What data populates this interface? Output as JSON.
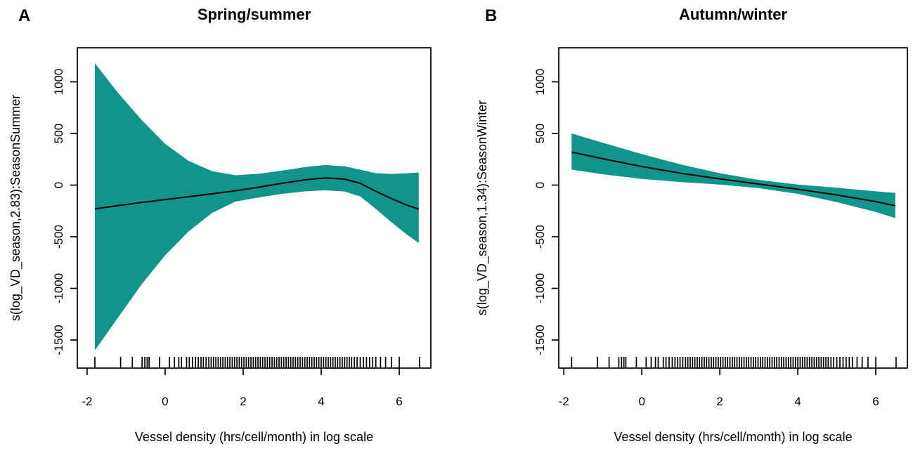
{
  "page": {
    "background": "#ffffff"
  },
  "colors": {
    "band": "#10948c",
    "fit_line": "#000000",
    "frame": "#000000",
    "text": "#000000"
  },
  "chart_data": [
    {
      "id": "a",
      "type": "area",
      "letter": "A",
      "title": "Spring/summer",
      "ylabel": "s(log_VD_season,2.83):SeasonSummer",
      "xlabel": "Vessel density (hrs/cell/month) in log scale",
      "xlim": [
        -2.25,
        6.81
      ],
      "ylim": [
        -1772,
        1330
      ],
      "xticks": [
        -2,
        0,
        2,
        4,
        6
      ],
      "yticks": [
        -1500,
        -1000,
        -500,
        0,
        500,
        1000
      ],
      "grid": false,
      "legend": "none",
      "x": [
        -1.8,
        -1.2,
        -0.6,
        0.0,
        0.6,
        1.2,
        1.8,
        2.4,
        3.0,
        3.6,
        4.1,
        4.6,
        5.0,
        5.4,
        5.8,
        6.2,
        6.5
      ],
      "fit": [
        -230,
        -198,
        -168,
        -140,
        -112,
        -84,
        -55,
        -20,
        18,
        52,
        70,
        58,
        18,
        -60,
        -130,
        -195,
        -232
      ],
      "upper": [
        1180,
        890,
        630,
        400,
        235,
        135,
        95,
        110,
        140,
        175,
        195,
        182,
        150,
        115,
        108,
        115,
        122
      ],
      "lower": [
        -1600,
        -1280,
        -960,
        -680,
        -450,
        -270,
        -160,
        -120,
        -85,
        -60,
        -50,
        -62,
        -110,
        -230,
        -360,
        -480,
        -560
      ],
      "rug_x": [
        -1.8,
        -1.14,
        -0.84,
        -0.59,
        -0.52,
        -0.46,
        -0.41,
        -0.14,
        0.11,
        0.24,
        0.35,
        0.42,
        0.55,
        0.62,
        0.7,
        0.78,
        0.85,
        0.92,
        0.98,
        1.05,
        1.12,
        1.18,
        1.24,
        1.3,
        1.36,
        1.42,
        1.48,
        1.54,
        1.6,
        1.66,
        1.72,
        1.78,
        1.84,
        1.9,
        1.96,
        2.02,
        2.08,
        2.14,
        2.2,
        2.26,
        2.32,
        2.38,
        2.44,
        2.5,
        2.56,
        2.62,
        2.68,
        2.74,
        2.8,
        2.86,
        2.92,
        2.98,
        3.04,
        3.1,
        3.16,
        3.22,
        3.28,
        3.34,
        3.4,
        3.46,
        3.52,
        3.58,
        3.64,
        3.7,
        3.76,
        3.82,
        3.88,
        3.94,
        4.0,
        4.06,
        4.12,
        4.18,
        4.24,
        4.3,
        4.36,
        4.42,
        4.48,
        4.54,
        4.6,
        4.66,
        4.72,
        4.78,
        4.85,
        4.92,
        5.0,
        5.08,
        5.16,
        5.24,
        5.32,
        5.4,
        5.52,
        5.65,
        5.8,
        6.0,
        6.52
      ],
      "layout": {
        "box": {
          "l": 110,
          "t": 68,
          "r": 613,
          "b": 524
        },
        "ylab_x": 28,
        "letter_x": 26,
        "title_y": 28,
        "letter_y": 30,
        "xlab_dy": 104,
        "xtick_label_dy": 53,
        "ytick_label_dx": -26,
        "rug_len": 16,
        "tick_len": 10
      }
    },
    {
      "id": "b",
      "type": "area",
      "letter": "B",
      "title": "Autumn/winter",
      "ylabel": "s(log_VD_season,1.34):SeasonWinter",
      "xlabel": "Vessel density (hrs/cell/month) in log scale",
      "xlim": [
        -2.13,
        6.81
      ],
      "ylim": [
        -1772,
        1330
      ],
      "xticks": [
        -2,
        0,
        2,
        4,
        6
      ],
      "yticks": [
        -1500,
        -1000,
        -500,
        0,
        500,
        1000
      ],
      "grid": false,
      "legend": "none",
      "x": [
        -1.8,
        -1.0,
        0.0,
        1.0,
        2.0,
        3.0,
        4.0,
        5.0,
        6.0,
        6.5
      ],
      "fit": [
        320,
        255,
        180,
        115,
        60,
        10,
        -40,
        -95,
        -160,
        -200
      ],
      "upper": [
        500,
        410,
        300,
        200,
        115,
        50,
        5,
        -25,
        -60,
        -75
      ],
      "lower": [
        150,
        105,
        60,
        30,
        5,
        -30,
        -85,
        -165,
        -260,
        -320
      ],
      "rug_x": [
        -1.8,
        -1.14,
        -0.84,
        -0.59,
        -0.52,
        -0.46,
        -0.41,
        -0.14,
        0.11,
        0.24,
        0.35,
        0.42,
        0.55,
        0.62,
        0.7,
        0.78,
        0.85,
        0.92,
        0.98,
        1.05,
        1.12,
        1.18,
        1.24,
        1.3,
        1.36,
        1.42,
        1.48,
        1.54,
        1.6,
        1.66,
        1.72,
        1.78,
        1.84,
        1.9,
        1.96,
        2.02,
        2.08,
        2.14,
        2.2,
        2.26,
        2.32,
        2.38,
        2.44,
        2.5,
        2.56,
        2.62,
        2.68,
        2.74,
        2.8,
        2.86,
        2.92,
        2.98,
        3.04,
        3.1,
        3.16,
        3.22,
        3.28,
        3.34,
        3.4,
        3.46,
        3.52,
        3.58,
        3.64,
        3.7,
        3.76,
        3.82,
        3.88,
        3.94,
        4.0,
        4.06,
        4.12,
        4.18,
        4.24,
        4.3,
        4.36,
        4.42,
        4.48,
        4.54,
        4.6,
        4.66,
        4.72,
        4.78,
        4.85,
        4.92,
        5.0,
        5.08,
        5.16,
        5.24,
        5.32,
        5.4,
        5.52,
        5.65,
        5.8,
        6.0,
        6.52
      ],
      "layout": {
        "box": {
          "l": 145,
          "t": 68,
          "r": 641,
          "b": 524
        },
        "ylab_x": 42,
        "letter_x": 40,
        "title_y": 28,
        "letter_y": 30,
        "xlab_dy": 104,
        "xtick_label_dy": 53,
        "ytick_label_dx": -26,
        "rug_len": 16,
        "tick_len": 10
      }
    }
  ]
}
